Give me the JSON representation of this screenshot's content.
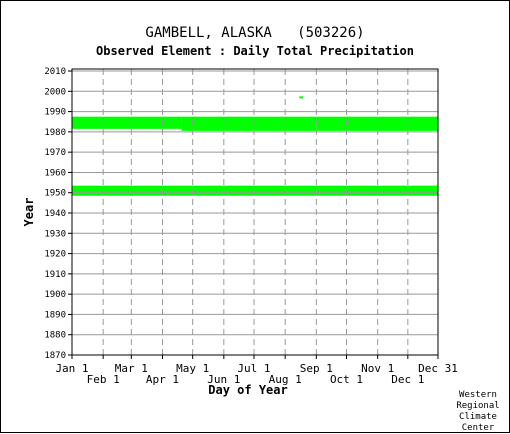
{
  "chart_data": {
    "type": "bar",
    "title": "GAMBELL, ALASKA   (503226)",
    "subtitle": "Observed Element : Daily Total Precipitation",
    "xlabel": "Day of Year",
    "ylabel": "Year",
    "ylim": [
      1870,
      2011
    ],
    "xlim_days": [
      1,
      365
    ],
    "yticks": [
      1870,
      1880,
      1890,
      1900,
      1910,
      1920,
      1930,
      1940,
      1950,
      1960,
      1970,
      1980,
      1990,
      2000,
      2010
    ],
    "xticks_top": [
      {
        "label": "Jan 1",
        "day": 1
      },
      {
        "label": "Mar 1",
        "day": 60
      },
      {
        "label": "May 1",
        "day": 121
      },
      {
        "label": "Jul 1",
        "day": 182
      },
      {
        "label": "Sep 1",
        "day": 244
      },
      {
        "label": "Nov 1",
        "day": 305
      },
      {
        "label": "Dec 31",
        "day": 365
      }
    ],
    "xticks_bottom": [
      {
        "label": "Feb 1",
        "day": 32
      },
      {
        "label": "Apr 1",
        "day": 91
      },
      {
        "label": "Jun 1",
        "day": 152
      },
      {
        "label": "Aug 1",
        "day": 213
      },
      {
        "label": "Oct 1",
        "day": 274
      },
      {
        "label": "Dec 1",
        "day": 335
      }
    ],
    "grid": true,
    "bar_color": "#00ff00",
    "series": [
      {
        "values": [
          {
            "day_start": 1,
            "day_end": 110,
            "year_start": 1982,
            "year_end": 1987
          },
          {
            "day_start": 110,
            "day_end": 183,
            "year_start": 1981,
            "year_end": 1987
          },
          {
            "day_start": 183,
            "day_end": 244,
            "year_start": 1981,
            "year_end": 1987
          },
          {
            "day_start": 244,
            "day_end": 365,
            "year_start": 1981,
            "year_end": 1987
          },
          {
            "day_start": 1,
            "day_end": 365,
            "year_start": 1949,
            "year_end": 1953
          },
          {
            "day_start": 227,
            "day_end": 231,
            "year_start": 1997,
            "year_end": 1997
          }
        ]
      }
    ]
  },
  "credit": {
    "line1": "Western",
    "line2": "Regional",
    "line3": "Climate",
    "line4": "Center"
  }
}
